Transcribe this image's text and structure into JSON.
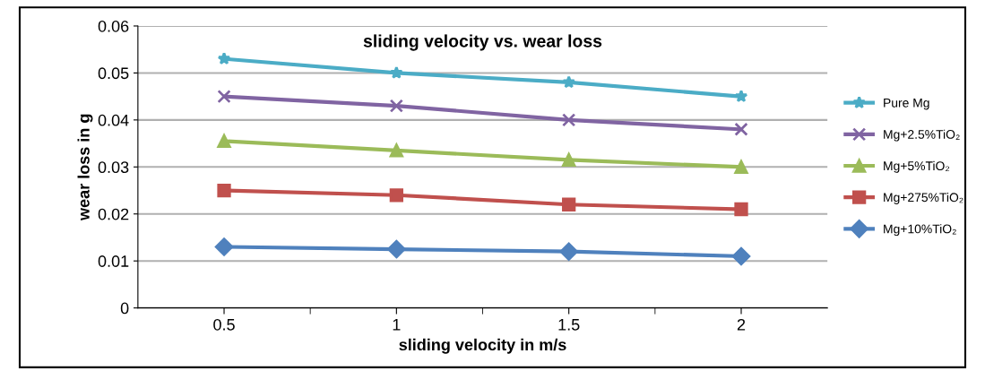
{
  "chart_data": {
    "type": "line",
    "title": "sliding velocity vs. wear loss",
    "xlabel": "sliding velocity in m/s",
    "ylabel": "wear loss in g",
    "categories": [
      "0.5",
      "1",
      "1.5",
      "2"
    ],
    "ylim": [
      0,
      0.06
    ],
    "yticks": [
      0,
      0.01,
      0.02,
      0.03,
      0.04,
      0.05,
      0.06
    ],
    "grid": "y",
    "legend": "right",
    "series": [
      {
        "name": "Pure Mg",
        "color": "#4bacc6",
        "marker": "star",
        "values": [
          0.053,
          0.05,
          0.048,
          0.045
        ]
      },
      {
        "name": "Mg+2.5%TiO₂",
        "color": "#8064a2",
        "marker": "cross",
        "values": [
          0.045,
          0.043,
          0.04,
          0.038
        ]
      },
      {
        "name": "Mg+5%TiO₂",
        "color": "#9bbb59",
        "marker": "triangle",
        "values": [
          0.0355,
          0.0335,
          0.0315,
          0.03
        ]
      },
      {
        "name": "Mg+275%TiO₂",
        "color": "#c0504d",
        "marker": "square",
        "values": [
          0.025,
          0.024,
          0.022,
          0.021
        ]
      },
      {
        "name": "Mg+10%TiO₂",
        "color": "#4f81bd",
        "marker": "diamond",
        "values": [
          0.013,
          0.0125,
          0.012,
          0.011
        ]
      }
    ]
  }
}
